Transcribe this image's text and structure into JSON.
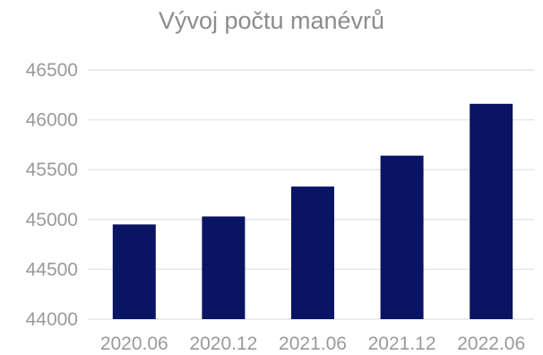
{
  "chart_data": {
    "type": "bar",
    "title": "Vývoj počtu manévrů",
    "xlabel": "",
    "ylabel": "",
    "categories": [
      "2020.06",
      "2020.12",
      "2021.06",
      "2021.12",
      "2022.06"
    ],
    "values": [
      44950,
      45030,
      45330,
      45640,
      46160
    ],
    "ylim": [
      44000,
      46500
    ],
    "yticks": [
      "44000",
      "44500",
      "45000",
      "45500",
      "46000",
      "46500"
    ],
    "grid": true,
    "legend": "none",
    "bar_color": "#0a1464",
    "grid_color": "#e6e6e6",
    "text_color": "#9a9a9a"
  }
}
